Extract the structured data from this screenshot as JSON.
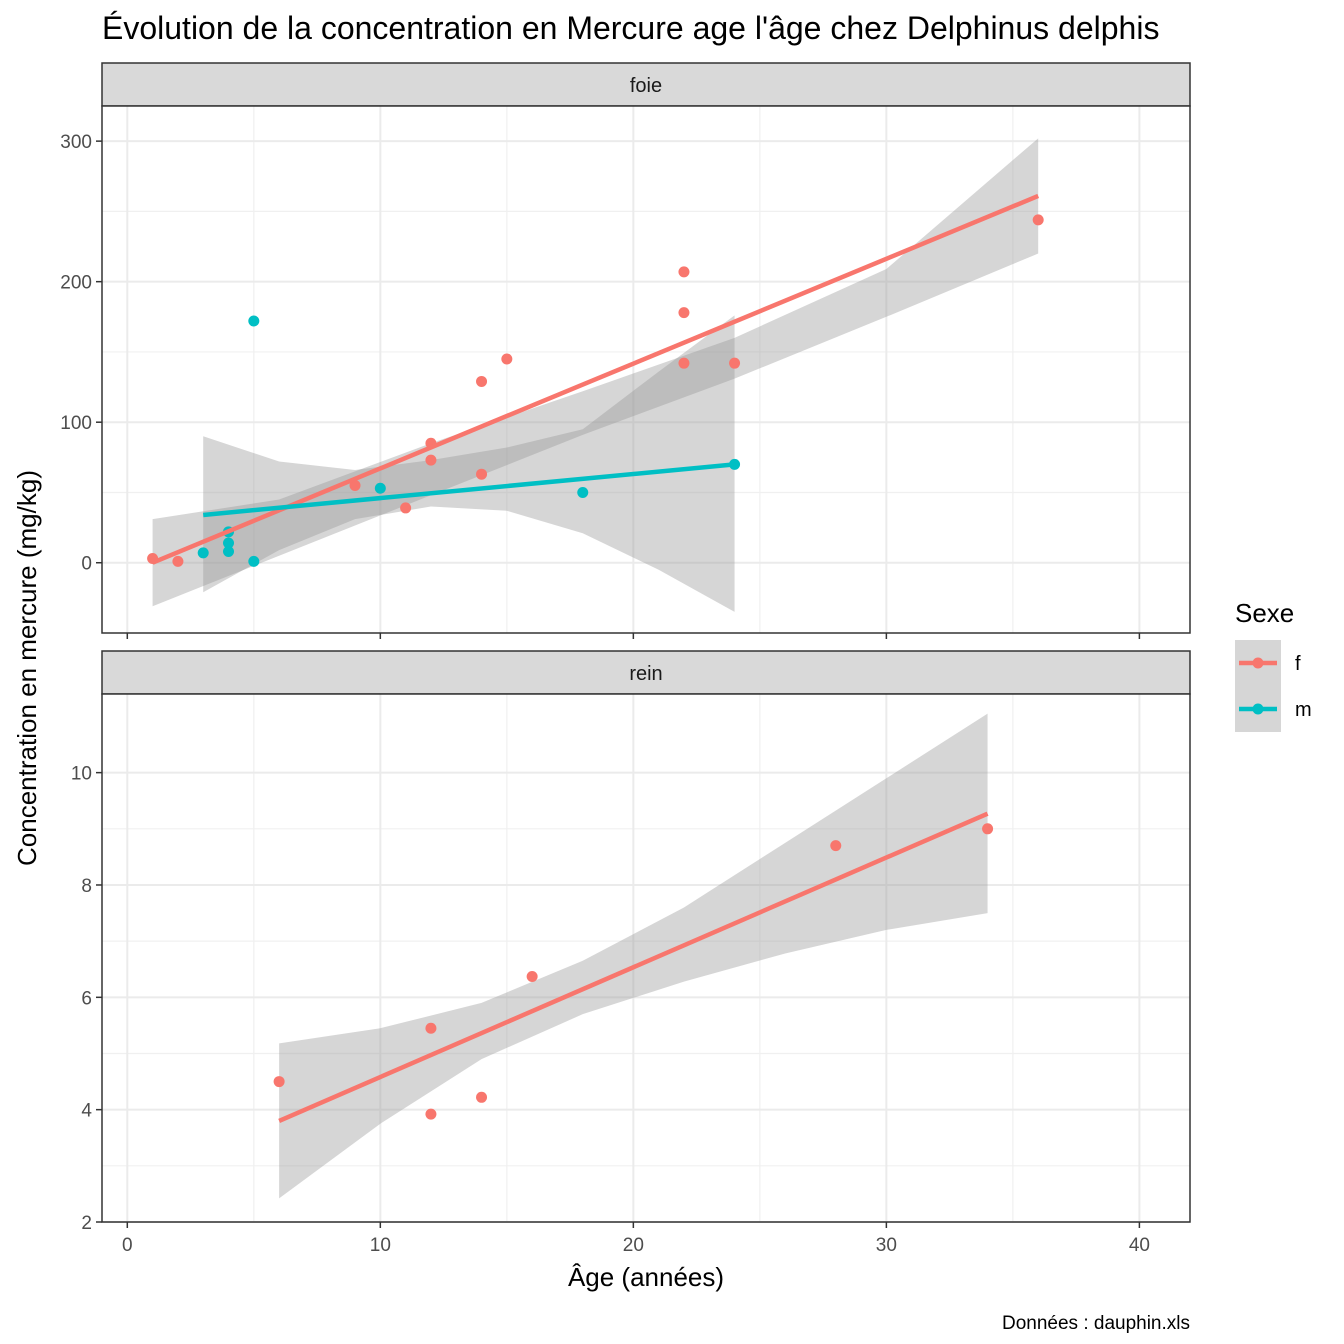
{
  "chart_data": {
    "type": "scatter",
    "title": "Évolution de la concentration en Mercure age l'âge chez Delphinus delphis",
    "xlabel": "Âge (années)",
    "ylabel": "Concentration en mercure (mg/kg)",
    "caption": "Données : dauphin.xls",
    "xlim": [
      -1,
      42
    ],
    "x_ticks": [
      0,
      10,
      20,
      30,
      40
    ],
    "grid": true,
    "legend": {
      "title": "Sexe",
      "position": "right",
      "items": [
        {
          "label": "f",
          "color": "#F8766D"
        },
        {
          "label": "m",
          "color": "#00BFC4"
        }
      ]
    },
    "panels": [
      {
        "label": "foie",
        "ylim": [
          -50,
          325
        ],
        "y_ticks": [
          0,
          100,
          200,
          300
        ],
        "series": [
          {
            "name": "f",
            "color": "#F8766D",
            "points": [
              [
                1,
                3
              ],
              [
                2,
                1
              ],
              [
                9,
                55
              ],
              [
                11,
                39
              ],
              [
                12,
                85
              ],
              [
                12,
                73
              ],
              [
                14,
                129
              ],
              [
                14,
                63
              ],
              [
                15,
                145
              ],
              [
                22,
                207
              ],
              [
                22,
                178
              ],
              [
                22,
                142
              ],
              [
                24,
                142
              ],
              [
                36,
                244
              ]
            ],
            "fit": {
              "x": [
                1,
                36
              ],
              "y": [
                0,
                261
              ]
            },
            "band": {
              "x": [
                1,
                6,
                12,
                18,
                24,
                30,
                36
              ],
              "lower": [
                -31,
                5,
                48,
                91,
                131,
                175,
                220
              ],
              "upper": [
                31,
                45,
                85,
                122,
                160,
                209,
                302
              ]
            }
          },
          {
            "name": "m",
            "color": "#00BFC4",
            "points": [
              [
                3,
                7
              ],
              [
                4,
                22
              ],
              [
                4,
                14
              ],
              [
                4,
                8
              ],
              [
                5,
                172
              ],
              [
                5,
                1
              ],
              [
                10,
                53
              ],
              [
                18,
                50
              ],
              [
                24,
                70
              ]
            ],
            "fit": {
              "x": [
                3,
                24
              ],
              "y": [
                34,
                70
              ]
            },
            "band": {
              "x": [
                3,
                6,
                9,
                12,
                15,
                18,
                21,
                24
              ],
              "lower": [
                -21,
                9,
                31,
                40,
                37,
                21,
                -5,
                -35
              ],
              "upper": [
                90,
                72,
                66,
                73,
                82,
                95,
                136,
                176
              ]
            }
          }
        ]
      },
      {
        "label": "rein",
        "ylim": [
          2,
          11.4
        ],
        "y_ticks": [
          2,
          4,
          6,
          8,
          10
        ],
        "series": [
          {
            "name": "f",
            "color": "#F8766D",
            "points": [
              [
                6,
                4.5
              ],
              [
                12,
                5.45
              ],
              [
                12,
                3.92
              ],
              [
                14,
                4.22
              ],
              [
                16,
                6.37
              ],
              [
                28,
                8.7
              ],
              [
                34,
                9.0
              ]
            ],
            "fit": {
              "x": [
                6,
                34
              ],
              "y": [
                3.8,
                9.27
              ]
            },
            "band": {
              "x": [
                6,
                10,
                14,
                18,
                22,
                26,
                30,
                34
              ],
              "lower": [
                2.42,
                3.75,
                4.9,
                5.7,
                6.28,
                6.78,
                7.2,
                7.5
              ],
              "upper": [
                5.18,
                5.45,
                5.9,
                6.65,
                7.6,
                8.75,
                9.9,
                11.05
              ]
            }
          }
        ]
      }
    ]
  }
}
